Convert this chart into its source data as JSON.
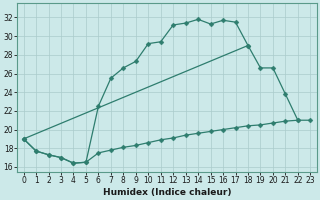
{
  "xlabel": "Humidex (Indice chaleur)",
  "bg_color": "#cce9e9",
  "grid_color": "#aacccc",
  "line_color": "#2e7d6e",
  "xlim": [
    -0.5,
    23.5
  ],
  "ylim": [
    15.5,
    33.5
  ],
  "xticks": [
    0,
    1,
    2,
    3,
    4,
    5,
    6,
    7,
    8,
    9,
    10,
    11,
    12,
    13,
    14,
    15,
    16,
    17,
    18,
    19,
    20,
    21,
    22,
    23
  ],
  "yticks": [
    16,
    18,
    20,
    22,
    24,
    26,
    28,
    30,
    32
  ],
  "line1_x": [
    0,
    1,
    2,
    3,
    4,
    5,
    6,
    7,
    8,
    9,
    10,
    11,
    12,
    13,
    14,
    15,
    16,
    17,
    18,
    19,
    20,
    21,
    22,
    23
  ],
  "line1_y": [
    19.0,
    17.7,
    17.3,
    17.0,
    16.4,
    16.5,
    22.5,
    25.5,
    26.6,
    27.3,
    29.2,
    29.4,
    31.2,
    31.4,
    31.8,
    31.3,
    31.7,
    31.5,
    29.0,
    null,
    null,
    null,
    null,
    null
  ],
  "line2_x": [
    0,
    1,
    2,
    3,
    4,
    5,
    6,
    7,
    8,
    9,
    10,
    11,
    12,
    13,
    14,
    15,
    16,
    17,
    18,
    19,
    20,
    21,
    22,
    23
  ],
  "line2_y": [
    19.0,
    null,
    null,
    null,
    null,
    null,
    null,
    null,
    null,
    null,
    null,
    null,
    null,
    null,
    null,
    null,
    null,
    null,
    29.0,
    26.6,
    26.6,
    23.8,
    21.0,
    null
  ],
  "line3_x": [
    0,
    1,
    2,
    3,
    4,
    5,
    6,
    7,
    8,
    9,
    10,
    11,
    12,
    13,
    14,
    15,
    16,
    17,
    18,
    19,
    20,
    21,
    22,
    23
  ],
  "line3_y": [
    19.0,
    17.7,
    17.3,
    17.0,
    16.4,
    16.5,
    17.5,
    17.8,
    18.1,
    18.3,
    18.6,
    18.9,
    19.1,
    19.4,
    19.6,
    19.8,
    20.0,
    20.2,
    20.4,
    20.5,
    20.7,
    20.9,
    21.0,
    21.0
  ]
}
